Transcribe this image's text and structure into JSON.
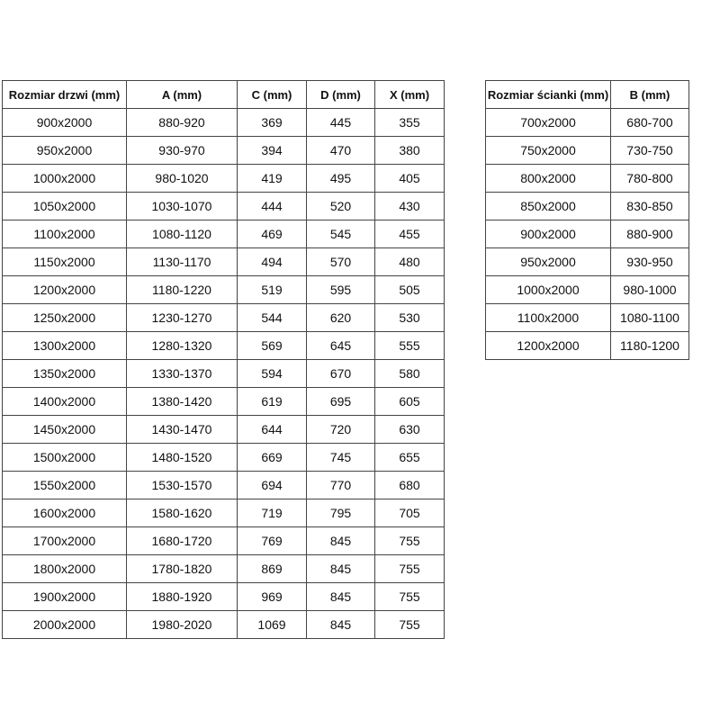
{
  "doors_table": {
    "headers": [
      "Rozmiar drzwi (mm)",
      "A (mm)",
      "C (mm)",
      "D (mm)",
      "X (mm)"
    ],
    "rows": [
      [
        "900x2000",
        "880-920",
        "369",
        "445",
        "355"
      ],
      [
        "950x2000",
        "930-970",
        "394",
        "470",
        "380"
      ],
      [
        "1000x2000",
        "980-1020",
        "419",
        "495",
        "405"
      ],
      [
        "1050x2000",
        "1030-1070",
        "444",
        "520",
        "430"
      ],
      [
        "1100x2000",
        "1080-1120",
        "469",
        "545",
        "455"
      ],
      [
        "1150x2000",
        "1130-1170",
        "494",
        "570",
        "480"
      ],
      [
        "1200x2000",
        "1180-1220",
        "519",
        "595",
        "505"
      ],
      [
        "1250x2000",
        "1230-1270",
        "544",
        "620",
        "530"
      ],
      [
        "1300x2000",
        "1280-1320",
        "569",
        "645",
        "555"
      ],
      [
        "1350x2000",
        "1330-1370",
        "594",
        "670",
        "580"
      ],
      [
        "1400x2000",
        "1380-1420",
        "619",
        "695",
        "605"
      ],
      [
        "1450x2000",
        "1430-1470",
        "644",
        "720",
        "630"
      ],
      [
        "1500x2000",
        "1480-1520",
        "669",
        "745",
        "655"
      ],
      [
        "1550x2000",
        "1530-1570",
        "694",
        "770",
        "680"
      ],
      [
        "1600x2000",
        "1580-1620",
        "719",
        "795",
        "705"
      ],
      [
        "1700x2000",
        "1680-1720",
        "769",
        "845",
        "755"
      ],
      [
        "1800x2000",
        "1780-1820",
        "869",
        "845",
        "755"
      ],
      [
        "1900x2000",
        "1880-1920",
        "969",
        "845",
        "755"
      ],
      [
        "2000x2000",
        "1980-2020",
        "1069",
        "845",
        "755"
      ]
    ]
  },
  "wall_table": {
    "headers": [
      "Rozmiar ścianki (mm)",
      "B (mm)"
    ],
    "rows": [
      [
        "700x2000",
        "680-700"
      ],
      [
        "750x2000",
        "730-750"
      ],
      [
        "800x2000",
        "780-800"
      ],
      [
        "850x2000",
        "830-850"
      ],
      [
        "900x2000",
        "880-900"
      ],
      [
        "950x2000",
        "930-950"
      ],
      [
        "1000x2000",
        "980-1000"
      ],
      [
        "1100x2000",
        "1080-1100"
      ],
      [
        "1200x2000",
        "1180-1200"
      ]
    ]
  }
}
